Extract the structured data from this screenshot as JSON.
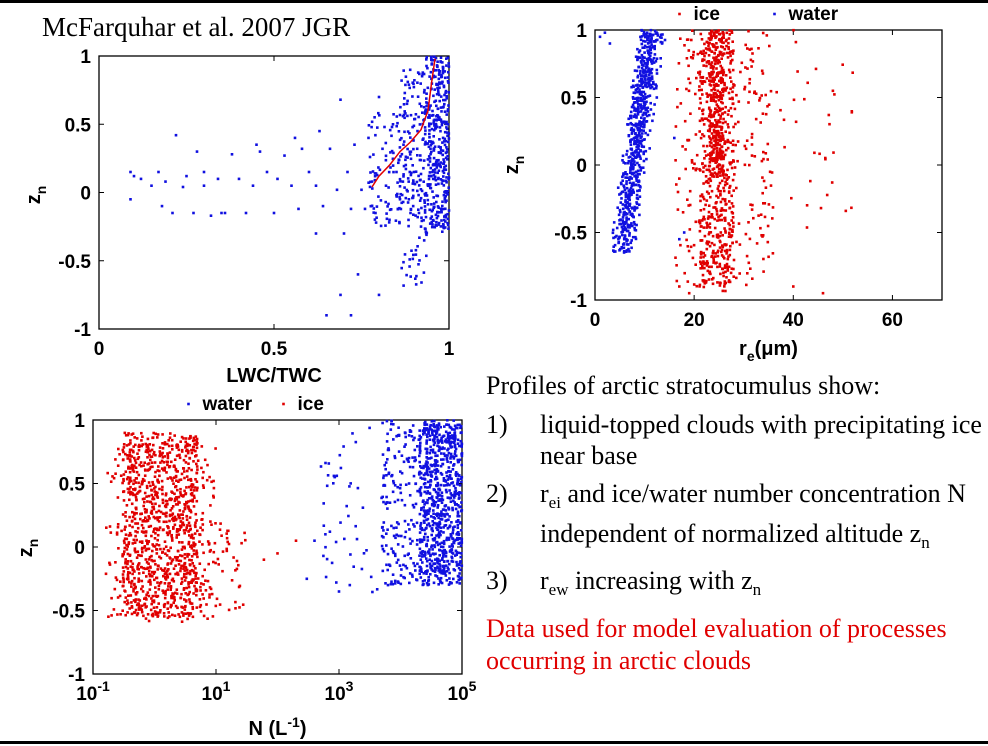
{
  "citation": "McFarquhar et al. 2007 JGR",
  "text": {
    "heading": "Profiles of arctic stratocumulus show:",
    "items": [
      {
        "num": "1)",
        "text": "liquid-topped clouds with precipitating ice near base"
      },
      {
        "num": "2)",
        "pre": "r",
        "sub": "ei",
        "text": " and ice/water number concentration N independent of normalized altitude z",
        "sub2": "n"
      },
      {
        "num": "3)",
        "pre": "r",
        "sub": "ew",
        "text": " increasing with z",
        "sub2": "n"
      }
    ],
    "conclusion": "Data used for model evaluation of processes occurring in arctic clouds",
    "conclusion_color": "#e00000"
  },
  "colors": {
    "water": "#1010e0",
    "ice": "#e00000",
    "fit": "#e00000"
  },
  "chart_data": [
    {
      "id": "lwc",
      "type": "scatter",
      "title": "",
      "xlabel": "LWC/TWC",
      "ylabel": "z",
      "ylabel_sub": "n",
      "xlim": [
        0,
        1
      ],
      "ylim": [
        -1,
        1
      ],
      "xticks": [
        "0",
        "0.5",
        "1"
      ],
      "yticks": [
        "-1",
        "-0.5",
        "0",
        "0.5",
        "1"
      ],
      "legend": [],
      "series": [
        {
          "color_key": "water",
          "points": [
            [
              0.09,
              0.15
            ],
            [
              0.1,
              0.12
            ],
            [
              0.12,
              0.1
            ],
            [
              0.15,
              0.05
            ],
            [
              0.17,
              0.15
            ],
            [
              0.19,
              0.08
            ],
            [
              0.21,
              -0.15
            ],
            [
              0.22,
              0.42
            ],
            [
              0.24,
              0.04
            ],
            [
              0.25,
              0.12
            ],
            [
              0.27,
              -0.15
            ],
            [
              0.28,
              0.3
            ],
            [
              0.3,
              0.05
            ],
            [
              0.32,
              -0.17
            ],
            [
              0.34,
              0.1
            ],
            [
              0.36,
              -0.15
            ],
            [
              0.38,
              0.28
            ],
            [
              0.4,
              0.1
            ],
            [
              0.42,
              -0.15
            ],
            [
              0.44,
              0.05
            ],
            [
              0.46,
              0.3
            ],
            [
              0.48,
              0.15
            ],
            [
              0.5,
              -0.15
            ],
            [
              0.51,
              0.1
            ],
            [
              0.53,
              0.27
            ],
            [
              0.55,
              0.05
            ],
            [
              0.57,
              -0.12
            ],
            [
              0.58,
              0.32
            ],
            [
              0.6,
              0.15
            ],
            [
              0.62,
              0.05
            ],
            [
              0.63,
              0.45
            ],
            [
              0.64,
              -0.1
            ],
            [
              0.66,
              0.32
            ],
            [
              0.68,
              0.02
            ],
            [
              0.69,
              0.68
            ],
            [
              0.7,
              -0.3
            ],
            [
              0.71,
              0.15
            ],
            [
              0.72,
              -0.12
            ],
            [
              0.73,
              0.35
            ],
            [
              0.74,
              -0.6
            ],
            [
              0.75,
              0.02
            ],
            [
              0.76,
              -0.12
            ],
            [
              0.77,
              0.4
            ],
            [
              0.78,
              0.08
            ],
            [
              0.79,
              -0.15
            ],
            [
              0.8,
              0.7
            ],
            [
              0.81,
              0.32
            ],
            [
              0.82,
              0.05
            ],
            [
              0.83,
              -0.2
            ],
            [
              0.84,
              0.5
            ],
            [
              0.85,
              0.15
            ],
            [
              0.86,
              -0.05
            ],
            [
              0.87,
              0.35
            ],
            [
              0.88,
              0.65
            ],
            [
              0.89,
              -0.15
            ],
            [
              0.9,
              0.15
            ],
            [
              0.91,
              0.45
            ],
            [
              0.92,
              -0.25
            ],
            [
              0.93,
              0.75
            ],
            [
              0.94,
              0.05
            ],
            [
              0.72,
              -0.9
            ],
            [
              0.69,
              -0.75
            ],
            [
              0.8,
              -0.75
            ],
            [
              0.65,
              -0.9
            ],
            [
              0.62,
              -0.3
            ],
            [
              0.56,
              0.4
            ],
            [
              0.45,
              0.35
            ],
            [
              0.35,
              -0.15
            ],
            [
              0.3,
              0.15
            ],
            [
              0.18,
              -0.1
            ],
            [
              0.09,
              -0.05
            ]
          ],
          "dense": [
            {
              "x": [
                0.93,
                1.0
              ],
              "y": [
                -0.3,
                1.0
              ],
              "n": 380,
              "seed": 11
            },
            {
              "x": [
                0.86,
                0.93
              ],
              "y": [
                -0.25,
                0.9
              ],
              "n": 140,
              "seed": 12
            },
            {
              "x": [
                0.77,
                0.86
              ],
              "y": [
                -0.25,
                0.6
              ],
              "n": 80,
              "seed": 13
            },
            {
              "x": [
                0.85,
                0.95
              ],
              "y": [
                -0.7,
                -0.25
              ],
              "n": 25,
              "seed": 14
            }
          ]
        }
      ],
      "fit_line": [
        [
          0.78,
          0.04
        ],
        [
          0.8,
          0.12
        ],
        [
          0.83,
          0.2
        ],
        [
          0.86,
          0.3
        ],
        [
          0.89,
          0.37
        ],
        [
          0.92,
          0.46
        ],
        [
          0.94,
          0.6
        ],
        [
          0.95,
          0.8
        ],
        [
          0.96,
          0.98
        ]
      ]
    },
    {
      "id": "re",
      "type": "scatter",
      "title": "",
      "xlabel": "r",
      "xlabel_sub": "e",
      "xlabel_rest": "(μm)",
      "ylabel": "z",
      "ylabel_sub": "n",
      "xlim": [
        0,
        70
      ],
      "ylim": [
        -1,
        1
      ],
      "xticks": [
        "0",
        "20",
        "40",
        "60"
      ],
      "yticks": [
        "-1",
        "-0.5",
        "0",
        "0.5",
        "1"
      ],
      "legend": [
        {
          "label": "ice",
          "color_key": "ice"
        },
        {
          "label": "water",
          "color_key": "water"
        }
      ],
      "series": [
        {
          "color_key": "water",
          "band": {
            "y": [
              -0.65,
              1.0
            ],
            "x_center_bottom": 5.5,
            "x_center_top": 11.5,
            "spread_bottom": 2.5,
            "spread_top": 3.0,
            "n": 700,
            "seed": 21
          },
          "points": [
            [
              1,
              0.95
            ],
            [
              2,
              0.98
            ],
            [
              3,
              0.9
            ],
            [
              16,
              0.2
            ],
            [
              18,
              -0.5
            ],
            [
              17,
              -0.55
            ]
          ]
        },
        {
          "color_key": "ice",
          "dense": [
            {
              "x": [
                21,
                28
              ],
              "y": [
                -0.9,
                1.0
              ],
              "n": 500,
              "seed": 31
            },
            {
              "x": [
                23,
                26
              ],
              "y": [
                -0.1,
                1.0
              ],
              "n": 250,
              "seed": 32
            },
            {
              "x": [
                16,
                36
              ],
              "y": [
                -0.95,
                1.0
              ],
              "n": 250,
              "seed": 33
            },
            {
              "x": [
                28,
                52
              ],
              "y": [
                -0.5,
                1.0
              ],
              "n": 50,
              "seed": 34
            }
          ],
          "points": [
            [
              46,
              -0.95
            ],
            [
              40,
              -0.9
            ],
            [
              17,
              -0.9
            ],
            [
              19,
              -0.95
            ],
            [
              48,
              0.55
            ]
          ]
        }
      ]
    },
    {
      "id": "n",
      "type": "scatter",
      "title": "",
      "xlabel": "N (L",
      "xlabel_sup": "-1",
      "xlabel_rest": ")",
      "ylabel": "z",
      "ylabel_sub": "n",
      "xscale": "log",
      "xlim": [
        0.1,
        100000
      ],
      "ylim": [
        -1,
        1
      ],
      "xticks": [
        {
          "base": "10",
          "exp": "-1"
        },
        {
          "base": "10",
          "exp": "1"
        },
        {
          "base": "10",
          "exp": "3"
        },
        {
          "base": "10",
          "exp": "5"
        }
      ],
      "yticks": [
        "-1",
        "-0.5",
        "0",
        "0.5",
        "1"
      ],
      "legend": [
        {
          "label": "water",
          "color_key": "water"
        },
        {
          "label": "ice",
          "color_key": "ice"
        }
      ],
      "series": [
        {
          "color_key": "ice",
          "dense_log": [
            {
              "x": [
                0.3,
                5
              ],
              "y": [
                -0.55,
                0.9
              ],
              "n": 900,
              "seed": 41
            },
            {
              "x": [
                0.15,
                10
              ],
              "y": [
                -0.6,
                0.8
              ],
              "n": 250,
              "seed": 42
            },
            {
              "x": [
                5,
                30
              ],
              "y": [
                -0.5,
                0.2
              ],
              "n": 60,
              "seed": 43
            }
          ],
          "points": [
            [
              100,
              -0.05
            ],
            [
              60,
              -0.1
            ],
            [
              200,
              0.05
            ]
          ]
        },
        {
          "color_key": "water",
          "dense_log": [
            {
              "x": [
                20000,
                100000
              ],
              "y": [
                -0.3,
                1.0
              ],
              "n": 800,
              "seed": 51
            },
            {
              "x": [
                5000,
                20000
              ],
              "y": [
                -0.3,
                1.0
              ],
              "n": 180,
              "seed": 52
            },
            {
              "x": [
                500,
                5000
              ],
              "y": [
                -0.4,
                1.0
              ],
              "n": 45,
              "seed": 53
            }
          ],
          "points": [
            [
              300,
              -0.25
            ],
            [
              1000,
              -0.35
            ],
            [
              1500,
              -0.3
            ],
            [
              400,
              0.05
            ],
            [
              600,
              0.1
            ]
          ]
        }
      ]
    }
  ]
}
